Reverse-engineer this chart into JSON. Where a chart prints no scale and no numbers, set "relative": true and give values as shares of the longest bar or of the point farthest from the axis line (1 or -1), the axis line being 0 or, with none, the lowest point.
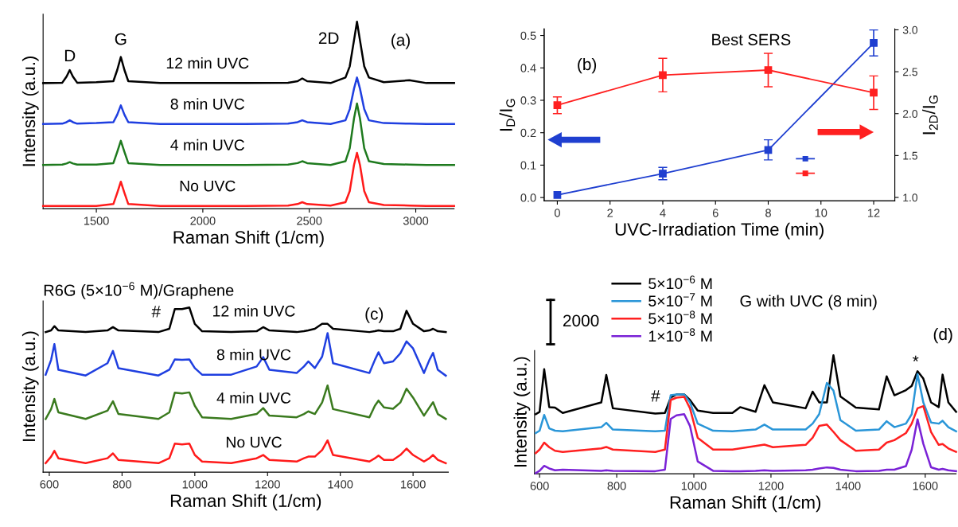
{
  "chart_data": [
    {
      "type": "line",
      "relative": true,
      "xlabel": "Raman Shift (1/cm)",
      "ylabel": "Intensity (a.u.)",
      "xlim": [
        1250,
        3180
      ],
      "xticks": [
        1500,
        2000,
        2500,
        3000
      ],
      "annotations": [
        "D",
        "G",
        "2D",
        "(a)"
      ],
      "x": [
        1250,
        1340,
        1360,
        1375,
        1390,
        1410,
        1500,
        1580,
        1598,
        1615,
        1632,
        1650,
        1800,
        2000,
        2200,
        2400,
        2445,
        2467,
        2490,
        2600,
        2670,
        2690,
        2710,
        2724,
        2738,
        2758,
        2780,
        2850,
        2970,
        3050,
        3180
      ],
      "series": [
        {
          "name": "12 min UVC",
          "color": "#000000",
          "values": [
            0.67,
            0.672,
            0.705,
            0.74,
            0.705,
            0.672,
            0.675,
            0.68,
            0.74,
            0.81,
            0.74,
            0.68,
            0.67,
            0.67,
            0.67,
            0.672,
            0.68,
            0.695,
            0.68,
            0.67,
            0.7,
            0.76,
            0.9,
            1.0,
            0.9,
            0.76,
            0.7,
            0.675,
            0.685,
            0.67,
            0.67
          ]
        },
        {
          "name": "8 min UVC",
          "color": "#1f3fe0",
          "values": [
            0.45,
            0.452,
            0.46,
            0.47,
            0.46,
            0.452,
            0.455,
            0.46,
            0.5,
            0.55,
            0.5,
            0.46,
            0.45,
            0.45,
            0.45,
            0.452,
            0.46,
            0.47,
            0.46,
            0.45,
            0.47,
            0.53,
            0.64,
            0.7,
            0.64,
            0.53,
            0.47,
            0.455,
            0.452,
            0.45,
            0.45
          ]
        },
        {
          "name": "4 min UVC",
          "color": "#1e7a1e",
          "values": [
            0.23,
            0.232,
            0.238,
            0.245,
            0.238,
            0.232,
            0.232,
            0.24,
            0.3,
            0.36,
            0.3,
            0.24,
            0.23,
            0.23,
            0.23,
            0.232,
            0.24,
            0.25,
            0.24,
            0.23,
            0.25,
            0.32,
            0.48,
            0.56,
            0.48,
            0.32,
            0.25,
            0.235,
            0.232,
            0.23,
            0.23
          ]
        },
        {
          "name": "No UVC",
          "color": "#ff1a1a",
          "values": [
            0.01,
            0.01,
            0.01,
            0.01,
            0.01,
            0.01,
            0.01,
            0.02,
            0.08,
            0.14,
            0.08,
            0.02,
            0.01,
            0.01,
            0.01,
            0.012,
            0.02,
            0.03,
            0.02,
            0.012,
            0.03,
            0.09,
            0.23,
            0.295,
            0.23,
            0.09,
            0.03,
            0.015,
            0.012,
            0.01,
            0.01
          ]
        }
      ]
    },
    {
      "type": "line",
      "title": "Best SERS",
      "xlabel": "UVC-Irradiation Time (min)",
      "ylabel": "I$_{D}$/I$_{G}$",
      "y2label": "I$_{2D}$/I$_{G}$",
      "marker": "square",
      "line_style": "solid",
      "xlim": [
        -0.5,
        12.8
      ],
      "xticks": [
        0,
        2,
        4,
        6,
        8,
        10,
        12
      ],
      "ylim": [
        -0.01,
        0.52
      ],
      "yticks": [
        {
          "value": 0,
          "label": "0.0"
        },
        0.1,
        0.2,
        0.3,
        0.4,
        0.5
      ],
      "y2lim": [
        0.96,
        3.01
      ],
      "y2ticks": [
        {
          "value": 1,
          "label": "1.0"
        },
        1.5,
        {
          "value": 2,
          "label": "2.0"
        },
        2.5,
        {
          "value": 3,
          "label": "3.0"
        }
      ],
      "annotations": [
        "(b)"
      ],
      "x": [
        0,
        4,
        8,
        12
      ],
      "series": [
        {
          "color": "#1f3fd0",
          "values": [
            0.008,
            0.074,
            0.147,
            0.477
          ],
          "errors": [
            null,
            0.019,
            0.031,
            0.04
          ]
        },
        {
          "color": "#ff2020",
          "axis": "y2",
          "values": [
            2.1,
            2.46,
            2.52,
            2.25
          ],
          "errors": [
            0.1,
            0.2,
            0.2,
            0.2
          ]
        }
      ]
    },
    {
      "type": "line",
      "relative": true,
      "title": "R6G (5×10$^{−6}$ M)/Graphene",
      "xlabel": "Raman Shift (1/cm)",
      "ylabel": "Intensity (a.u.)",
      "xlim": [
        583,
        1697
      ],
      "xticks": [
        600,
        800,
        1000,
        1200,
        1400,
        1600
      ],
      "annotations": [
        "#",
        "(c)"
      ],
      "x": [
        590,
        605,
        614,
        625,
        700,
        760,
        775,
        790,
        900,
        930,
        945,
        965,
        985,
        1000,
        1020,
        1100,
        1170,
        1188,
        1205,
        1280,
        1300,
        1312,
        1330,
        1350,
        1365,
        1380,
        1480,
        1495,
        1505,
        1520,
        1545,
        1565,
        1582,
        1600,
        1630,
        1645,
        1655,
        1668,
        1690
      ],
      "series": [
        {
          "name": "12 min UVC",
          "color": "#000000",
          "values": [
            0.85,
            0.86,
            0.886,
            0.86,
            0.85,
            0.86,
            0.88,
            0.86,
            0.85,
            0.87,
            0.99,
            0.99,
            1.0,
            0.9,
            0.855,
            0.85,
            0.855,
            0.88,
            0.86,
            0.85,
            0.855,
            0.86,
            0.87,
            0.9,
            0.9,
            0.87,
            0.85,
            0.855,
            0.86,
            0.855,
            0.855,
            0.87,
            0.98,
            0.9,
            0.855,
            0.86,
            0.87,
            0.855,
            0.85
          ]
        },
        {
          "name": "8 min UVC",
          "color": "#1f3fe0",
          "values": [
            0.59,
            0.68,
            0.777,
            0.62,
            0.585,
            0.66,
            0.735,
            0.63,
            0.585,
            0.62,
            0.683,
            0.68,
            0.683,
            0.63,
            0.59,
            0.59,
            0.64,
            0.697,
            0.62,
            0.6,
            0.64,
            0.671,
            0.63,
            0.7,
            0.843,
            0.66,
            0.6,
            0.68,
            0.727,
            0.66,
            0.671,
            0.72,
            0.793,
            0.75,
            0.6,
            0.68,
            0.723,
            0.62,
            0.584
          ]
        },
        {
          "name": "4 min UVC",
          "color": "#3a7a1e",
          "values": [
            0.32,
            0.38,
            0.442,
            0.36,
            0.32,
            0.37,
            0.428,
            0.35,
            0.32,
            0.36,
            0.48,
            0.475,
            0.482,
            0.4,
            0.33,
            0.32,
            0.35,
            0.386,
            0.34,
            0.33,
            0.35,
            0.366,
            0.35,
            0.42,
            0.524,
            0.38,
            0.33,
            0.4,
            0.432,
            0.39,
            0.382,
            0.42,
            0.504,
            0.45,
            0.34,
            0.39,
            0.422,
            0.35,
            0.32
          ]
        },
        {
          "name": "No UVC",
          "color": "#ff1a1a",
          "values": [
            0.05,
            0.09,
            0.125,
            0.08,
            0.05,
            0.08,
            0.11,
            0.07,
            0.05,
            0.08,
            0.169,
            0.165,
            0.169,
            0.1,
            0.06,
            0.05,
            0.08,
            0.1,
            0.07,
            0.06,
            0.08,
            0.09,
            0.09,
            0.13,
            0.189,
            0.1,
            0.06,
            0.08,
            0.096,
            0.07,
            0.07,
            0.1,
            0.139,
            0.1,
            0.06,
            0.08,
            0.1,
            0.07,
            0.05
          ]
        }
      ]
    },
    {
      "type": "line",
      "relative": true,
      "title": "G with UVC (8 min)",
      "xlabel": "Raman Shift (1/cm)",
      "ylabel": "Intensity (a.u.)",
      "legend": "top left",
      "xlim": [
        587,
        1680
      ],
      "xticks": [
        600,
        800,
        1000,
        1200,
        1400,
        1600
      ],
      "annotations": [
        "#",
        "*",
        "(d)",
        "2000"
      ],
      "x": [
        590,
        600,
        612,
        625,
        640,
        660,
        760,
        773,
        790,
        900,
        925,
        940,
        955,
        975,
        990,
        1010,
        1050,
        1100,
        1120,
        1160,
        1183,
        1205,
        1290,
        1308,
        1325,
        1345,
        1362,
        1380,
        1420,
        1480,
        1500,
        1520,
        1550,
        1565,
        1580,
        1595,
        1615,
        1635,
        1645,
        1660,
        1680
      ],
      "series": [
        {
          "name": "5×10$^{−6}$ M",
          "color": "#000000",
          "values": [
            0.5,
            0.52,
            0.881,
            0.56,
            0.556,
            0.51,
            0.6,
            0.832,
            0.55,
            0.505,
            0.51,
            0.64,
            0.667,
            0.667,
            0.62,
            0.53,
            0.51,
            0.51,
            0.56,
            0.52,
            0.746,
            0.6,
            0.55,
            0.691,
            0.6,
            0.6,
            1.0,
            0.65,
            0.556,
            0.54,
            0.82,
            0.66,
            0.704,
            0.74,
            0.864,
            0.802,
            0.6,
            0.56,
            0.835,
            0.6,
            0.52
          ]
        },
        {
          "name": "5×10$^{−7}$ M",
          "color": "#2a96d8",
          "values": [
            0.34,
            0.36,
            0.494,
            0.38,
            0.36,
            0.355,
            0.39,
            0.427,
            0.37,
            0.355,
            0.36,
            0.66,
            0.667,
            0.667,
            0.6,
            0.42,
            0.36,
            0.355,
            0.36,
            0.37,
            0.412,
            0.37,
            0.37,
            0.42,
            0.5,
            0.765,
            0.7,
            0.45,
            0.36,
            0.37,
            0.44,
            0.39,
            0.42,
            0.5,
            0.84,
            0.6,
            0.43,
            0.42,
            0.444,
            0.39,
            0.355
          ]
        },
        {
          "name": "5×10$^{−8}$ M",
          "color": "#ff2020",
          "values": [
            0.17,
            0.2,
            0.259,
            0.22,
            0.19,
            0.18,
            0.21,
            0.222,
            0.2,
            0.18,
            0.2,
            0.62,
            0.64,
            0.647,
            0.55,
            0.3,
            0.2,
            0.2,
            0.21,
            0.23,
            0.242,
            0.22,
            0.24,
            0.3,
            0.4,
            0.412,
            0.35,
            0.28,
            0.19,
            0.2,
            0.259,
            0.28,
            0.34,
            0.42,
            0.55,
            0.568,
            0.35,
            0.24,
            0.247,
            0.21,
            0.18
          ]
        },
        {
          "name": "1×10$^{−8}$ M",
          "color": "#7a22d6",
          "values": [
            0.0,
            0.02,
            0.062,
            0.04,
            0.025,
            0.03,
            0.02,
            0.025,
            0.02,
            0.017,
            0.03,
            0.46,
            0.49,
            0.5,
            0.4,
            0.1,
            0.02,
            0.017,
            0.017,
            0.02,
            0.025,
            0.02,
            0.025,
            0.03,
            0.04,
            0.049,
            0.045,
            0.03,
            0.017,
            0.02,
            0.03,
            0.03,
            0.06,
            0.2,
            0.457,
            0.25,
            0.05,
            0.03,
            0.037,
            0.025,
            0.017
          ]
        }
      ]
    }
  ]
}
